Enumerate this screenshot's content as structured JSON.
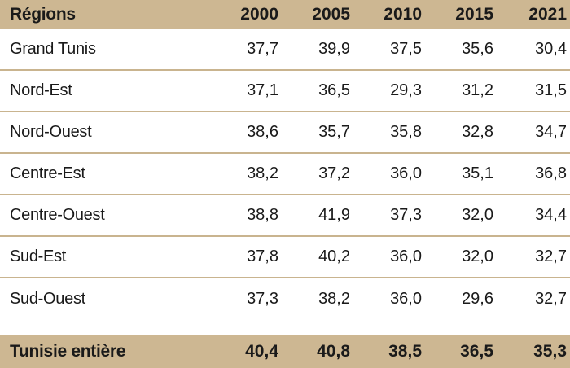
{
  "table": {
    "header": {
      "label": "Régions",
      "years": [
        "2000",
        "2005",
        "2010",
        "2015",
        "2021"
      ]
    },
    "rows": [
      {
        "label": "Grand Tunis",
        "values": [
          "37,7",
          "39,9",
          "37,5",
          "35,6",
          "30,4"
        ]
      },
      {
        "label": "Nord-Est",
        "values": [
          "37,1",
          "36,5",
          "29,3",
          "31,2",
          "31,5"
        ]
      },
      {
        "label": "Nord-Ouest",
        "values": [
          "38,6",
          "35,7",
          "35,8",
          "32,8",
          "34,7"
        ]
      },
      {
        "label": "Centre-Est",
        "values": [
          "38,2",
          "37,2",
          "36,0",
          "35,1",
          "36,8"
        ]
      },
      {
        "label": "Centre-Ouest",
        "values": [
          "38,8",
          "41,9",
          "37,3",
          "32,0",
          "34,4"
        ]
      },
      {
        "label": "Sud-Est",
        "values": [
          "37,8",
          "40,2",
          "36,0",
          "32,0",
          "32,7"
        ]
      },
      {
        "label": "Sud-Ouest",
        "values": [
          "37,3",
          "38,2",
          "36,0",
          "29,6",
          "32,7"
        ]
      }
    ],
    "total": {
      "label": "Tunisie entière",
      "values": [
        "40,4",
        "40,8",
        "38,5",
        "36,5",
        "35,3"
      ]
    },
    "colors": {
      "header_bg": "#cdb792",
      "row_divider": "#c9b48f"
    }
  }
}
